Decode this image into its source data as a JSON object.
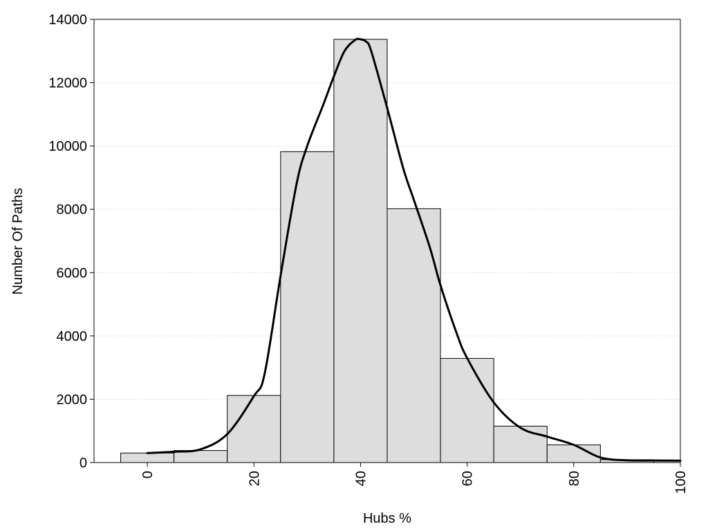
{
  "chart_data": {
    "type": "bar",
    "title": "",
    "xlabel": "Hubs %",
    "ylabel": "Number Of Paths",
    "xlim": [
      -10,
      100
    ],
    "ylim": [
      0,
      14000
    ],
    "grid": "horizontal-dotted",
    "legend": "none",
    "xticks": [
      0,
      20,
      40,
      60,
      80,
      100
    ],
    "yticks": [
      0,
      2000,
      4000,
      6000,
      8000,
      10000,
      12000,
      14000
    ],
    "bin_width": 10,
    "bins": [
      {
        "center": 0,
        "value": 300
      },
      {
        "center": 10,
        "value": 380
      },
      {
        "center": 20,
        "value": 2120
      },
      {
        "center": 30,
        "value": 9820
      },
      {
        "center": 40,
        "value": 13370
      },
      {
        "center": 50,
        "value": 8020
      },
      {
        "center": 60,
        "value": 3290
      },
      {
        "center": 70,
        "value": 1150
      },
      {
        "center": 80,
        "value": 560
      },
      {
        "center": 90,
        "value": 90
      },
      {
        "center": 100,
        "value": 60
      }
    ],
    "curve": {
      "x": [
        0,
        5,
        10,
        15,
        20,
        22,
        25,
        28,
        30,
        33,
        35,
        37,
        39,
        40,
        41,
        42,
        45,
        48,
        50,
        53,
        55,
        58,
        60,
        65,
        70,
        75,
        80,
        85,
        90,
        95,
        100
      ],
      "y": [
        300,
        340,
        420,
        900,
        2100,
        2800,
        5900,
        8800,
        10000,
        11300,
        12200,
        13000,
        13350,
        13370,
        13300,
        13000,
        11200,
        9300,
        8300,
        6800,
        5600,
        4100,
        3300,
        1900,
        1100,
        820,
        560,
        160,
        70,
        65,
        60
      ]
    },
    "colors": {
      "bar_fill": "#dddddd",
      "bar_stroke": "#000000",
      "curve": "#000000",
      "grid": "#bbbbbb"
    }
  }
}
